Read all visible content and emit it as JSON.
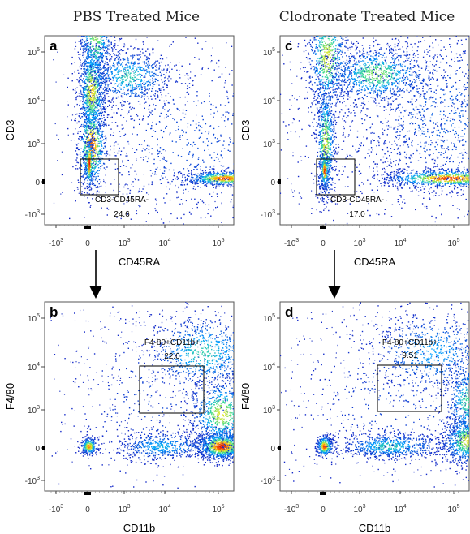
{
  "column_titles": [
    "PBS Treated Mice",
    "Clodronate Treated Mice"
  ],
  "chart_data": [
    {
      "type": "scatter",
      "panel": "a",
      "xlabel": "CD45RA",
      "ylabel": "CD3",
      "x_ticks": [
        "-10|3",
        "0",
        "10|3",
        "10|4",
        "10|5"
      ],
      "y_ticks": [
        "-10|3",
        "0",
        "10|3",
        "10|4",
        "10|5"
      ],
      "gate": {
        "label": "CD3-CD45RA-",
        "value": "24.6"
      },
      "populations": [
        {
          "name": "p1",
          "cx": 0.1,
          "cy": 0.95,
          "sx": 0.22,
          "sy": 0.6,
          "n": 700,
          "level": 0.9
        },
        {
          "name": "p2",
          "cx": 0.1,
          "cy": 2.2,
          "sx": 0.2,
          "sy": 0.55,
          "n": 900,
          "level": 0.75
        },
        {
          "name": "p3",
          "cx": 0.2,
          "cy": 3.3,
          "sx": 0.25,
          "sy": 0.55,
          "n": 600,
          "level": 0.6
        },
        {
          "name": "p4",
          "cx": 1.1,
          "cy": 2.5,
          "sx": 0.55,
          "sy": 0.3,
          "n": 700,
          "level": 0.45
        },
        {
          "name": "p5",
          "cx": 3.1,
          "cy": 0.1,
          "sx": 0.38,
          "sy": 0.1,
          "n": 700,
          "level": 0.95
        },
        {
          "name": "p6",
          "cx": 2.5,
          "cy": 1.0,
          "sx": 1.3,
          "sy": 1.2,
          "n": 900,
          "level": 0.1
        },
        {
          "name": "p7",
          "cx": 0.03,
          "cy": 0.5,
          "sx": 0.06,
          "sy": 0.35,
          "n": 250,
          "level": 1.0
        }
      ]
    },
    {
      "type": "scatter",
      "panel": "c",
      "xlabel": "CD45RA",
      "ylabel": "CD3",
      "x_ticks": [
        "-10|3",
        "0",
        "10|3",
        "10|4",
        "10|5"
      ],
      "y_ticks": [
        "-10|3",
        "0",
        "10|3",
        "10|4",
        "10|5"
      ],
      "gate": {
        "label": "CD3-CD45RA-",
        "value": "17.0"
      },
      "populations": [
        {
          "name": "p1",
          "cx": 0.05,
          "cy": 1.0,
          "sx": 0.14,
          "sy": 0.8,
          "n": 700,
          "level": 0.7
        },
        {
          "name": "p2",
          "cx": 0.1,
          "cy": 2.9,
          "sx": 0.3,
          "sy": 0.6,
          "n": 700,
          "level": 0.7
        },
        {
          "name": "p3",
          "cx": 1.4,
          "cy": 2.55,
          "sx": 0.65,
          "sy": 0.3,
          "n": 900,
          "level": 0.6
        },
        {
          "name": "p4",
          "cx": 2.9,
          "cy": 0.1,
          "sx": 0.65,
          "sy": 0.12,
          "n": 1000,
          "level": 0.95
        },
        {
          "name": "p5",
          "cx": 2.8,
          "cy": 1.6,
          "sx": 0.9,
          "sy": 1.1,
          "n": 900,
          "level": 0.15
        },
        {
          "name": "p6",
          "cx": 2.0,
          "cy": 1.8,
          "sx": 1.8,
          "sy": 1.5,
          "n": 900,
          "level": 0.05
        },
        {
          "name": "p7",
          "cx": 0.03,
          "cy": 0.3,
          "sx": 0.06,
          "sy": 0.25,
          "n": 200,
          "level": 1.0
        }
      ]
    },
    {
      "type": "scatter",
      "panel": "b",
      "xlabel": "CD11b",
      "ylabel": "F4/80",
      "x_ticks": [
        "-10|3",
        "0",
        "10|3",
        "10|4",
        "10|5"
      ],
      "y_ticks": [
        "-10|3",
        "0",
        "10|3",
        "10|4",
        "10|5"
      ],
      "gate": {
        "label": "F4-80+CD11b+",
        "value": "22.0"
      },
      "populations": [
        {
          "name": "p1",
          "cx": 3.05,
          "cy": 0.05,
          "sx": 0.25,
          "sy": 0.2,
          "n": 1100,
          "level": 1.0
        },
        {
          "name": "p2",
          "cx": 3.05,
          "cy": 0.9,
          "sx": 0.3,
          "sy": 0.45,
          "n": 700,
          "level": 0.7
        },
        {
          "name": "p3",
          "cx": 2.7,
          "cy": 2.3,
          "sx": 0.55,
          "sy": 0.4,
          "n": 800,
          "level": 0.45
        },
        {
          "name": "p4",
          "cx": 1.9,
          "cy": 0.05,
          "sx": 0.55,
          "sy": 0.2,
          "n": 500,
          "level": 0.35
        },
        {
          "name": "p5",
          "cx": 0.02,
          "cy": 0.05,
          "sx": 0.12,
          "sy": 0.12,
          "n": 250,
          "level": 0.9
        },
        {
          "name": "p6",
          "cx": 2.0,
          "cy": 1.2,
          "sx": 1.5,
          "sy": 1.3,
          "n": 500,
          "level": 0.08
        }
      ]
    },
    {
      "type": "scatter",
      "panel": "d",
      "xlabel": "CD11b",
      "ylabel": "F4/80",
      "x_ticks": [
        "-10|3",
        "0",
        "10|3",
        "10|4",
        "10|5"
      ],
      "y_ticks": [
        "-10|3",
        "0",
        "10|3",
        "10|4",
        "10|5"
      ],
      "gate": {
        "label": "F4-80+CD11b+",
        "value": "9.51"
      },
      "populations": [
        {
          "name": "p1",
          "cx": 3.25,
          "cy": 0.2,
          "sx": 0.25,
          "sy": 0.35,
          "n": 900,
          "level": 0.7
        },
        {
          "name": "p2",
          "cx": 3.25,
          "cy": 1.2,
          "sx": 0.22,
          "sy": 0.5,
          "n": 500,
          "level": 0.5
        },
        {
          "name": "p3",
          "cx": 2.6,
          "cy": 2.3,
          "sx": 0.65,
          "sy": 0.45,
          "n": 700,
          "level": 0.3
        },
        {
          "name": "p4",
          "cx": 1.7,
          "cy": 0.05,
          "sx": 0.6,
          "sy": 0.18,
          "n": 700,
          "level": 0.45
        },
        {
          "name": "p5",
          "cx": 0.02,
          "cy": 0.05,
          "sx": 0.12,
          "sy": 0.15,
          "n": 300,
          "level": 0.95
        },
        {
          "name": "p6",
          "cx": 2.0,
          "cy": 1.3,
          "sx": 1.6,
          "sy": 1.3,
          "n": 600,
          "level": 0.08
        }
      ]
    }
  ]
}
